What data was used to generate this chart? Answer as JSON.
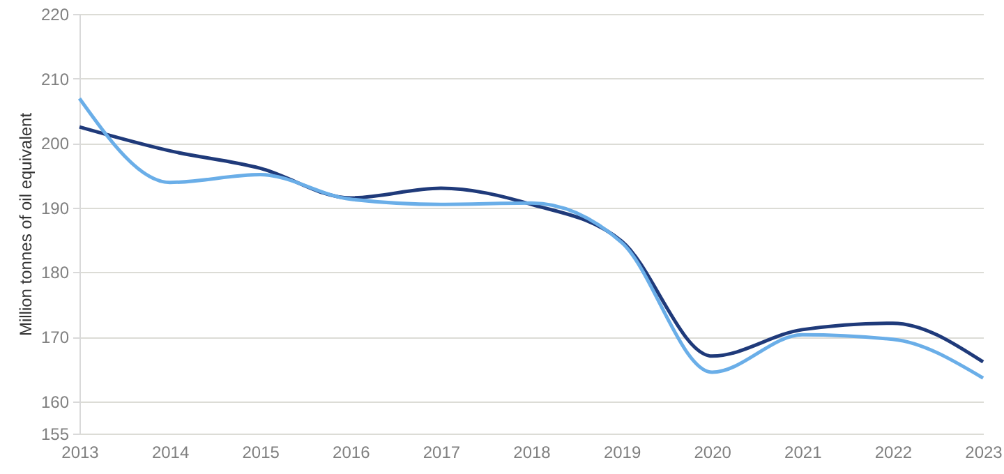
{
  "chart_data": {
    "type": "line",
    "ylabel": "Million tonnes of oil equivalent",
    "categories": [
      "2013",
      "2014",
      "2015",
      "2016",
      "2017",
      "2018",
      "2019",
      "2020",
      "2021",
      "2022",
      "2023"
    ],
    "series": [
      {
        "color": "#1f3a7a",
        "values": [
          202.5,
          198.8,
          196.1,
          191.5,
          193.0,
          190.5,
          184.8,
          167.0,
          171.1,
          172.1,
          166.1
        ]
      },
      {
        "color": "#6aaee8",
        "values": [
          206.9,
          193.9,
          195.1,
          191.3,
          190.5,
          190.7,
          184.6,
          164.5,
          170.3,
          169.6,
          163.6
        ]
      }
    ],
    "ylim": [
      155,
      220
    ],
    "yticks": [
      155,
      160,
      170,
      180,
      190,
      200,
      210,
      220
    ],
    "grid": "y",
    "marker": "none",
    "line_style": "solid"
  }
}
